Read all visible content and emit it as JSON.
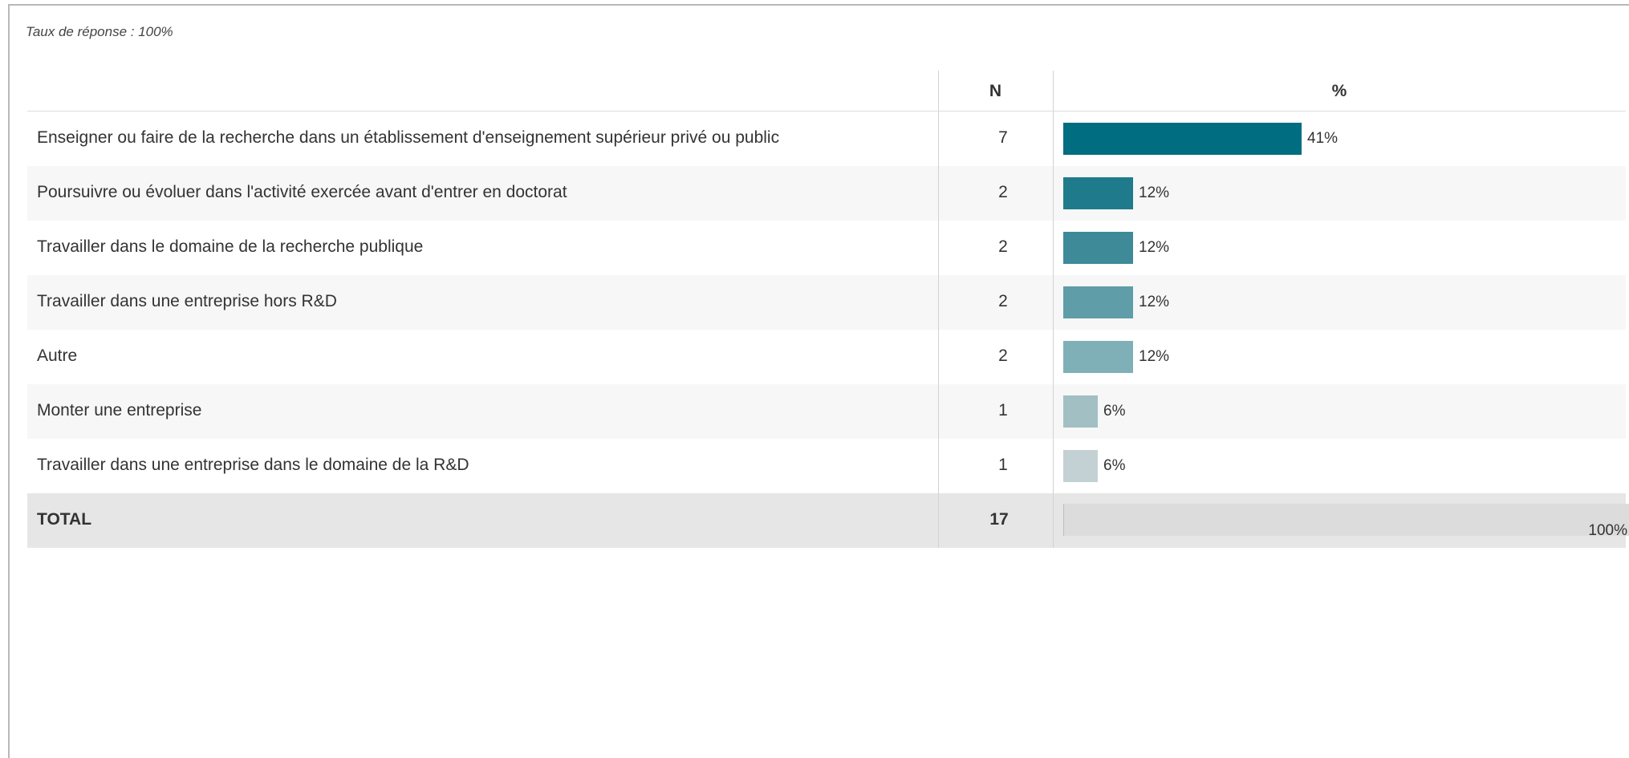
{
  "response_rate": "Taux de réponse : 100%",
  "columns": {
    "n": "N",
    "percent": "%"
  },
  "chart_data": {
    "type": "bar",
    "orientation": "horizontal",
    "categories": [
      "Enseigner ou faire de la recherche dans un établissement d'enseignement supérieur privé ou public",
      "Poursuivre ou évoluer dans l'activité exercée avant d'entrer en doctorat",
      "Travailler dans le domaine de la recherche publique",
      "Travailler dans une entreprise hors R&D",
      "Autre",
      "Monter une entreprise",
      "Travailler dans une entreprise dans le domaine de la R&D"
    ],
    "n": [
      7,
      2,
      2,
      2,
      2,
      1,
      1
    ],
    "values": [
      41,
      12,
      12,
      12,
      12,
      6,
      6
    ],
    "labels": [
      "41%",
      "12%",
      "12%",
      "12%",
      "12%",
      "6%",
      "6%"
    ],
    "colors": [
      "#006d80",
      "#1f7b8c",
      "#3e8a99",
      "#5f9da8",
      "#80b0b7",
      "#a2bfc4",
      "#c3d1d4"
    ],
    "xlim": [
      0,
      100
    ],
    "total": {
      "label": "TOTAL",
      "n": 17,
      "value": 100,
      "value_label": "100%"
    }
  }
}
